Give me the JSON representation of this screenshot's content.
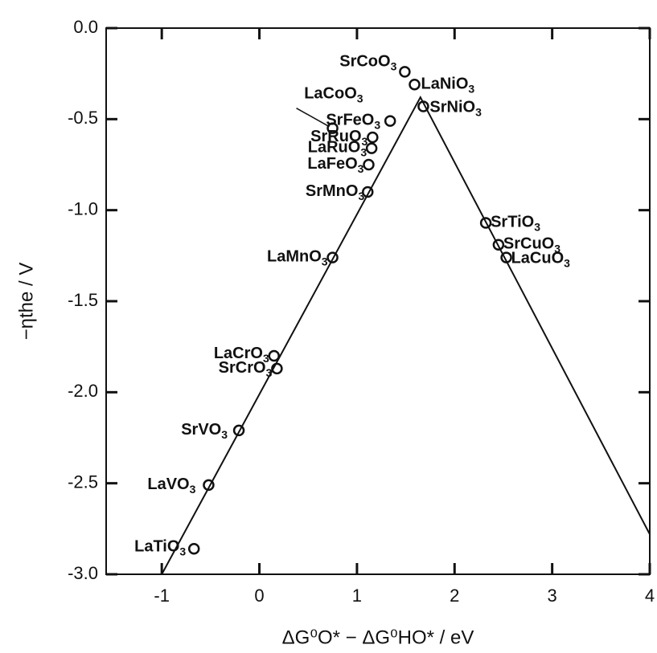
{
  "chart_data": {
    "type": "scatter",
    "x_label": "ΔG⁰O* − ΔG⁰HO* / eV",
    "y_label": "−ηthe / V",
    "points": {
      "labels": [
        "SrCoO3",
        "LaNiO3",
        "SrNiO3",
        "LaCoO3",
        "SrFeO3",
        "SrRuO3",
        "LaRuO3",
        "LaFeO3",
        "SrMnO3",
        "LaMnO3",
        "SrTiO3",
        "SrCuO3",
        "LaCuO3",
        "LaCrO3",
        "SrCrO3",
        "SrVO3",
        "LaVO3",
        "LaTiO3"
      ],
      "x": [
        1.49,
        1.59,
        1.68,
        0.75,
        1.34,
        1.16,
        1.15,
        1.12,
        1.11,
        0.75,
        2.32,
        2.45,
        2.53,
        0.15,
        0.18,
        -0.21,
        -0.52,
        -0.67
      ],
      "y": [
        -0.24,
        -0.31,
        -0.43,
        -0.55,
        -0.51,
        -0.6,
        -0.66,
        -0.75,
        -0.9,
        -1.26,
        -1.07,
        -1.19,
        -1.26,
        -1.8,
        -1.87,
        -2.21,
        -2.51,
        -2.86
      ]
    },
    "line": {
      "x": [
        -1,
        1.65,
        4
      ],
      "y": [
        -3,
        -0.38,
        -2.78
      ]
    },
    "color": "#111111",
    "xlim": [
      -1.57,
      4
    ],
    "ylim": [
      -3,
      0
    ],
    "xticks": [
      -1,
      0,
      1,
      2,
      3,
      4
    ],
    "yticks": [
      {
        "value": 0,
        "label": "0.0"
      },
      {
        "value": -0.5,
        "label": "-0.5"
      },
      {
        "value": -1,
        "label": "-1.0"
      },
      {
        "value": -1.5,
        "label": "-1.5"
      },
      {
        "value": -2,
        "label": "-2.0"
      },
      {
        "value": -2.5,
        "label": "-2.5"
      },
      {
        "value": -3,
        "label": "-3.0"
      }
    ]
  }
}
